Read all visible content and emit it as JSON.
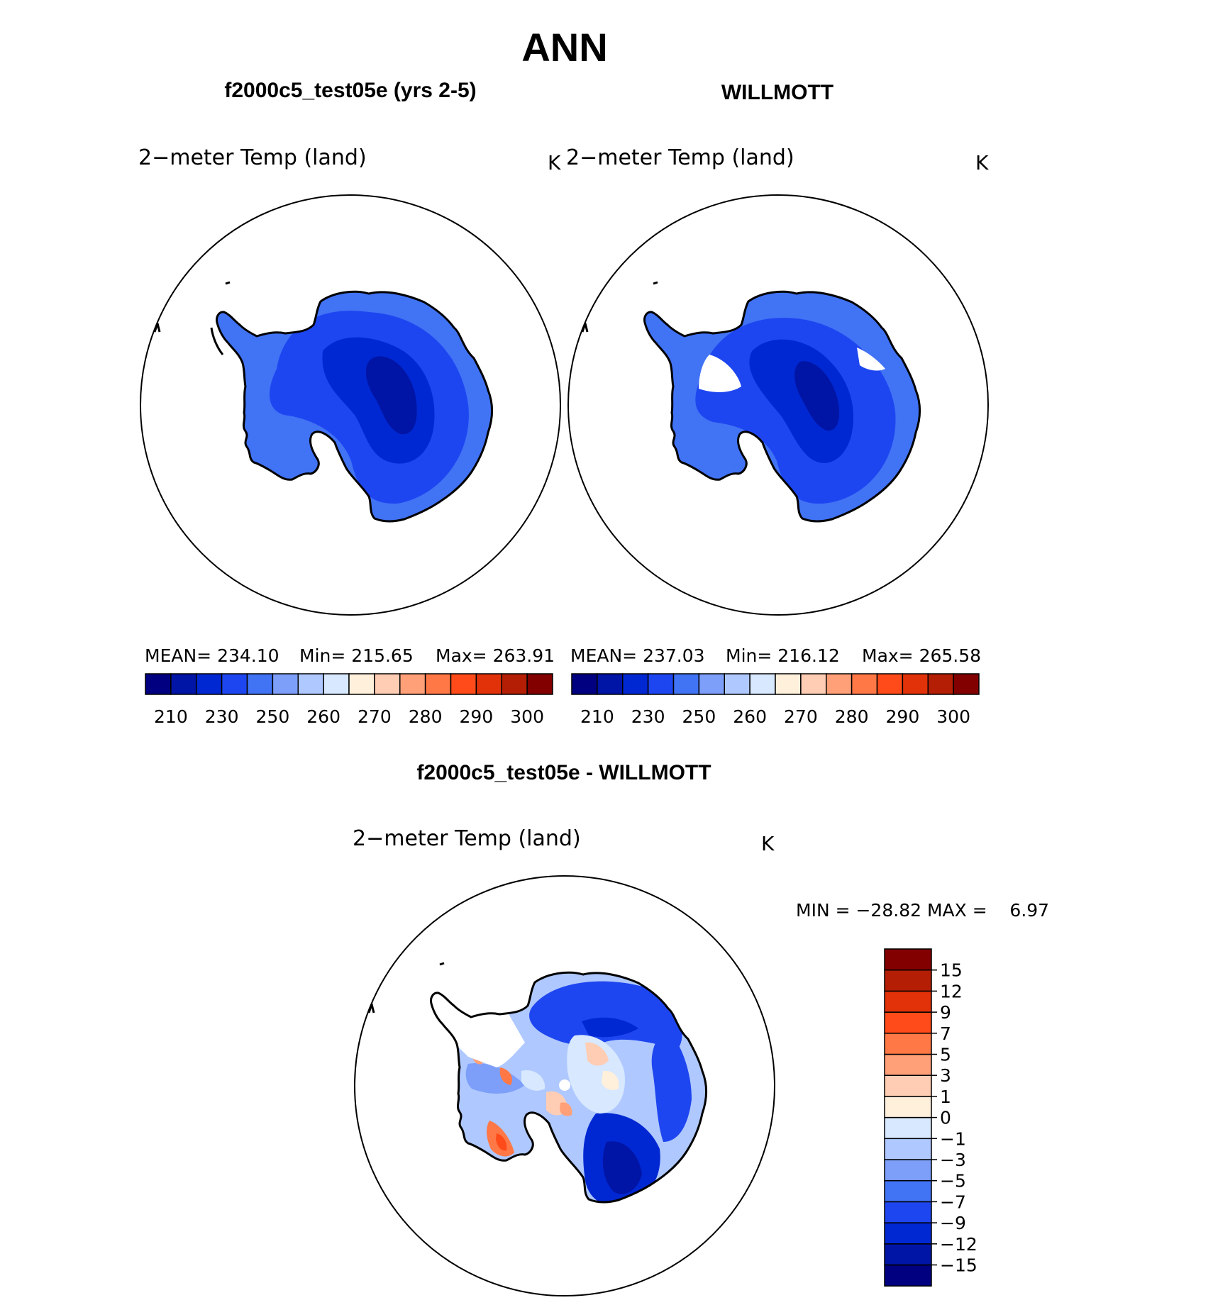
{
  "figure": {
    "title": "ANN",
    "panel_model": {
      "header": "f2000c5_test05e (yrs 2-5)",
      "var_label": "2−meter Temp (land)",
      "units": "K",
      "stats": {
        "mean_label": "MEAN= 234.10",
        "min_label": "Min= 215.65",
        "max_label": "Max= 263.91"
      }
    },
    "panel_obs": {
      "header": "WILLMOTT",
      "var_label": "2−meter Temp (land)",
      "units": "K",
      "stats": {
        "mean_label": "MEAN= 237.03",
        "min_label": "Min= 216.12",
        "max_label": "Max= 265.58"
      }
    },
    "panel_diff": {
      "header": "f2000c5_test05e - WILLMOTT",
      "var_label": "2−meter Temp (land)",
      "units": "K",
      "minmax_label": "MIN = −28.82 MAX =    6.97"
    },
    "abs_colorbar": {
      "colors": [
        "#000080",
        "#0014a5",
        "#0028d2",
        "#1e46f0",
        "#4173f5",
        "#7d9ffa",
        "#afc8ff",
        "#d7e8ff",
        "#fff0dc",
        "#ffcdb4",
        "#ffa078",
        "#ff7846",
        "#ff4b19",
        "#e1320a",
        "#b41e05",
        "#820000"
      ],
      "tick_labels": [
        "210",
        "230",
        "250",
        "260",
        "270",
        "280",
        "290",
        "300"
      ]
    },
    "diff_colorbar": {
      "colors": [
        "#000080",
        "#0014a5",
        "#0028d2",
        "#1e46f0",
        "#4173f5",
        "#7d9ffa",
        "#afc8ff",
        "#d7e8ff",
        "#fff0dc",
        "#ffcdb4",
        "#ffa078",
        "#ff7846",
        "#ff4b19",
        "#e1320a",
        "#b41e05",
        "#820000"
      ],
      "tick_labels": [
        "15",
        "12",
        "9",
        "7",
        "5",
        "3",
        "1",
        "0",
        "−1",
        "−3",
        "−5",
        "−7",
        "−9",
        "−12",
        "−15"
      ]
    }
  }
}
